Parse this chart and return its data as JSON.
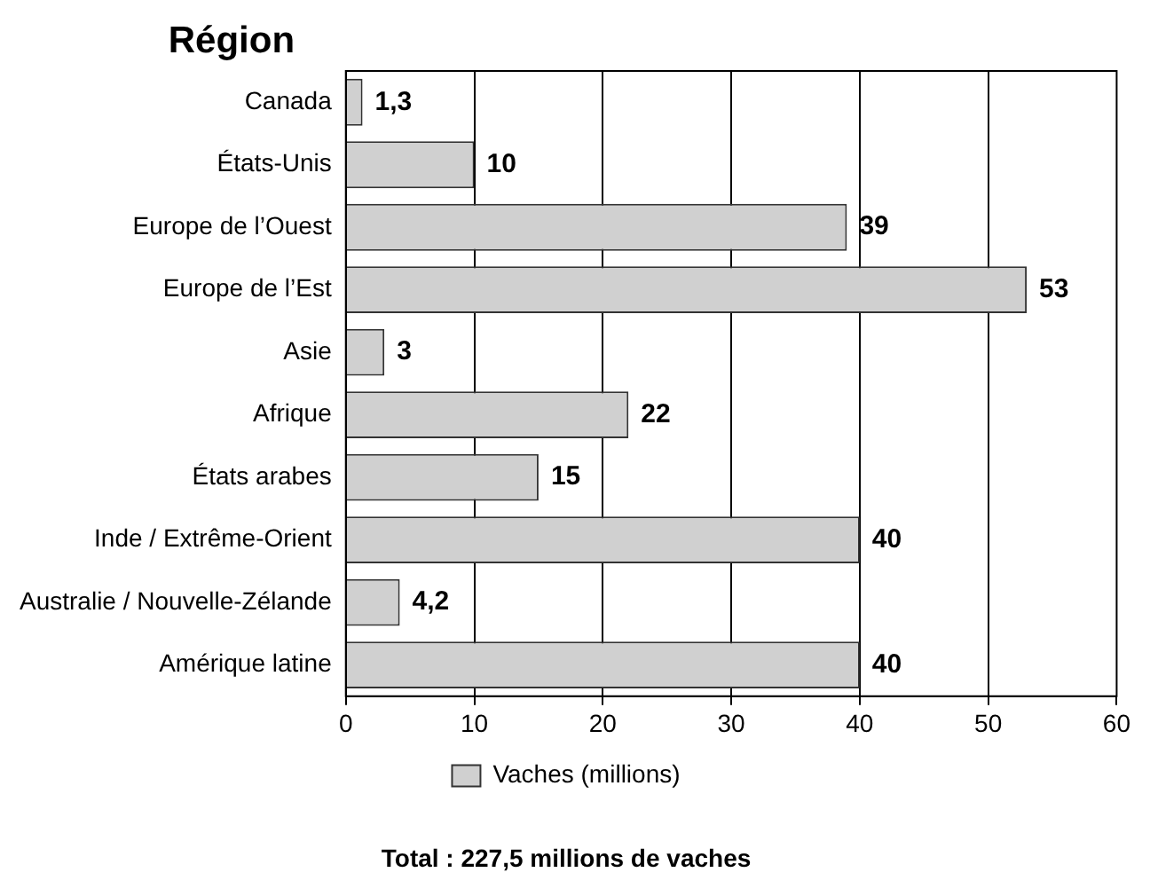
{
  "chart_data": {
    "type": "bar",
    "orientation": "horizontal",
    "ylabel": "Région",
    "categories": [
      "Canada",
      "États-Unis",
      "Europe de l’Ouest",
      "Europe de l’Est",
      "Asie",
      "Afrique",
      "États arabes",
      "Inde / Extrême-Orient",
      "Australie / Nouvelle-Zélande",
      "Amérique latine"
    ],
    "series": [
      {
        "name": "Vaches (millions)",
        "color": "#d0d0d0",
        "values": [
          1.3,
          10,
          39,
          53,
          3,
          22,
          15,
          40,
          4.2,
          40
        ],
        "value_labels": [
          "1,3",
          "10",
          "39",
          "53",
          "3",
          "22",
          "15",
          "40",
          "4,2",
          "40"
        ]
      }
    ],
    "xlim": [
      0,
      60
    ],
    "xticks": [
      0,
      10,
      20,
      30,
      40,
      50,
      60
    ],
    "grid": "x",
    "legend": "bottom",
    "annotations": [
      "Total : 227,5 millions de vaches"
    ]
  }
}
